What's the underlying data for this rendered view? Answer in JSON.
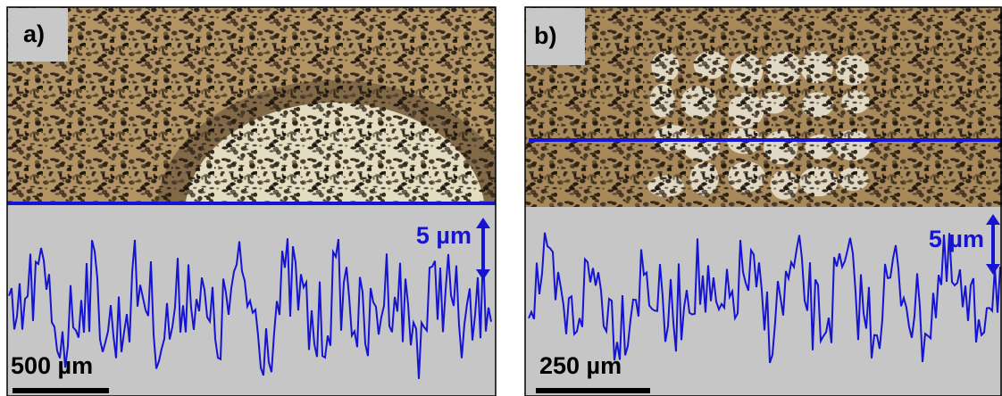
{
  "panels": [
    {
      "label": "a)",
      "height_scale": "5 µm",
      "scale_bar": "500 µm"
    },
    {
      "label": "b)",
      "height_scale": "5 µm",
      "scale_bar": "250 µm"
    }
  ]
}
